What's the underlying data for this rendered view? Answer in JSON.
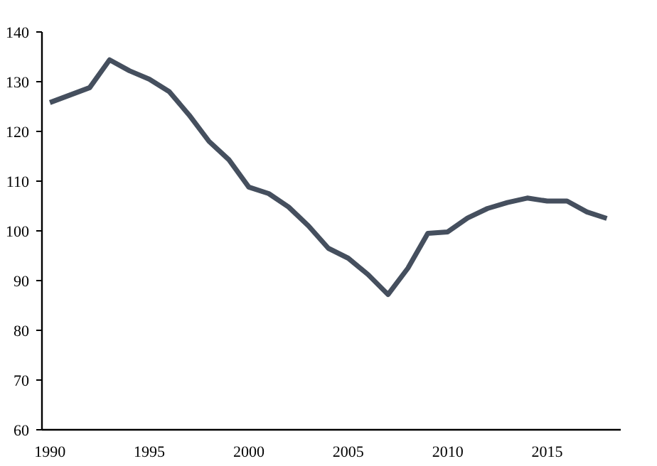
{
  "chart_data": {
    "type": "line",
    "x": [
      1990,
      1991,
      1992,
      1993,
      1994,
      1995,
      1996,
      1997,
      1998,
      1999,
      2000,
      2001,
      2002,
      2003,
      2004,
      2005,
      2006,
      2007,
      2008,
      2009,
      2010,
      2011,
      2012,
      2013,
      2014,
      2015,
      2016,
      2017,
      2018
    ],
    "series": [
      {
        "color": "#454f5e",
        "values": [
          125.8,
          127.3,
          128.8,
          134.4,
          132.2,
          130.5,
          128,
          123.3,
          118,
          114.3,
          108.8,
          107.5,
          104.8,
          101,
          96.5,
          94.5,
          91.2,
          87.2,
          92.5,
          99.5,
          99.8,
          102.6,
          104.5,
          105.7,
          106.6,
          106,
          106,
          103.8,
          102.5
        ]
      }
    ],
    "xlim": [
      1989.6,
      2018.7
    ],
    "xticks": [
      1990,
      1995,
      2000,
      2005,
      2010,
      2015
    ],
    "ylim": [
      60,
      140
    ],
    "yticks": [
      60,
      70,
      80,
      90,
      100,
      110,
      120,
      130,
      140
    ],
    "grid": false,
    "marker": "none",
    "line_style": "solid"
  }
}
